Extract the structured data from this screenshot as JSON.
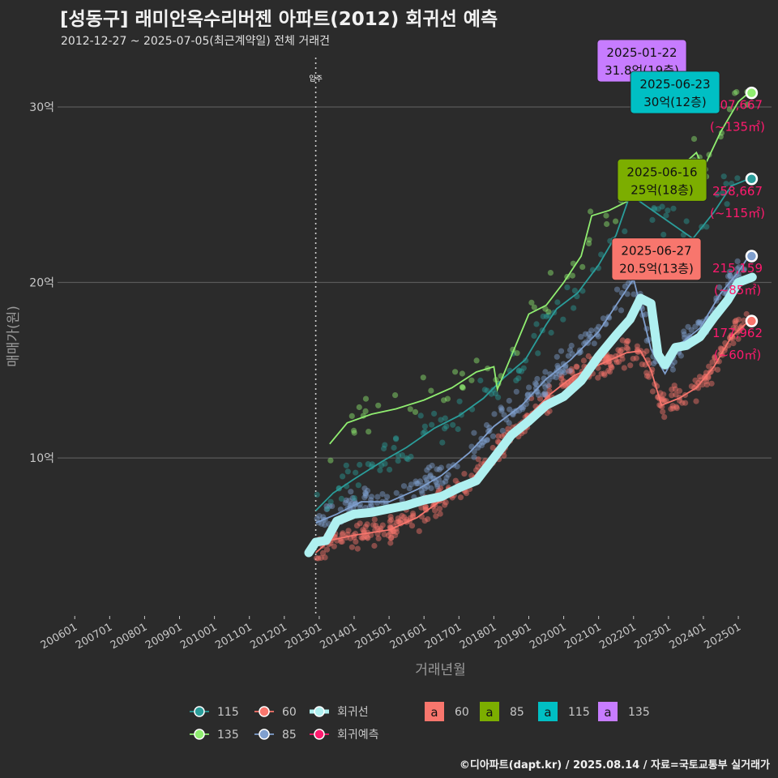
{
  "header": {
    "title": "[성동구] 래미안옥수리버젠 아파트(2012) 회귀선 예측",
    "subtitle": "2012-12-27 ~ 2025-07-05(최근계약일) 전체 거래건"
  },
  "caption": "©디아파트(dapt.kr) / 2025.08.14 / 자료=국토교통부 실거래가",
  "chart_data": {
    "type": "scatter",
    "xlabel": "거래년월",
    "ylabel": "매매가(원)",
    "x_ticks": [
      "200601",
      "200701",
      "200801",
      "200901",
      "201001",
      "201101",
      "201201",
      "201301",
      "201401",
      "201501",
      "201601",
      "201701",
      "201801",
      "201901",
      "202001",
      "202101",
      "202201",
      "202301",
      "202401",
      "202501"
    ],
    "y_ticks": [
      {
        "value": 10,
        "label": "10억"
      },
      {
        "value": 20,
        "label": "20억"
      },
      {
        "value": 30,
        "label": "30억"
      }
    ],
    "ylim": [
      1,
      33
    ],
    "xlim": [
      2005.6,
      2025.95
    ],
    "vline": {
      "x": 2012.9,
      "label": "입주"
    },
    "colors": {
      "60": "#f8766d",
      "85": "#7f9fce",
      "115": "#2a9d9a",
      "135": "#90ee70",
      "regression": "#aff0f0",
      "forecast": "#ff1a6e",
      "grid": "#5a5a5a",
      "axis_text": "#c8c8c8"
    },
    "series": [
      {
        "name": "60",
        "line": [
          [
            2012.9,
            4.6
          ],
          [
            2013.3,
            5.3
          ],
          [
            2014.0,
            5.6
          ],
          [
            2015.0,
            5.9
          ],
          [
            2015.8,
            6.6
          ],
          [
            2016.5,
            7.6
          ],
          [
            2017.3,
            8.6
          ],
          [
            2018.0,
            10.3
          ],
          [
            2018.8,
            12.0
          ],
          [
            2019.6,
            13.6
          ],
          [
            2020.3,
            14.7
          ],
          [
            2021.0,
            15.3
          ],
          [
            2021.8,
            16.0
          ],
          [
            2022.2,
            16.1
          ],
          [
            2022.5,
            15.0
          ],
          [
            2022.8,
            13.0
          ],
          [
            2023.3,
            13.4
          ],
          [
            2023.8,
            14.0
          ],
          [
            2024.3,
            15.2
          ],
          [
            2024.8,
            16.9
          ],
          [
            2025.3,
            17.8
          ]
        ]
      },
      {
        "name": "85",
        "line": [
          [
            2012.9,
            6.3
          ],
          [
            2013.5,
            6.8
          ],
          [
            2014.2,
            7.5
          ],
          [
            2015.0,
            7.5
          ],
          [
            2015.8,
            8.2
          ],
          [
            2016.5,
            9.0
          ],
          [
            2017.3,
            10.3
          ],
          [
            2018.0,
            11.8
          ],
          [
            2018.8,
            13.0
          ],
          [
            2019.5,
            14.5
          ],
          [
            2020.2,
            15.6
          ],
          [
            2021.0,
            17.2
          ],
          [
            2021.6,
            19.0
          ],
          [
            2022.0,
            20.2
          ],
          [
            2022.5,
            16.2
          ],
          [
            2022.9,
            14.8
          ],
          [
            2023.4,
            16.6
          ],
          [
            2023.9,
            17.4
          ],
          [
            2024.5,
            19.4
          ],
          [
            2025.0,
            20.6
          ],
          [
            2025.3,
            21.5
          ]
        ]
      },
      {
        "name": "115",
        "line": [
          [
            2012.9,
            7.0
          ],
          [
            2013.4,
            8.0
          ],
          [
            2014.0,
            8.8
          ],
          [
            2014.8,
            9.8
          ],
          [
            2015.5,
            10.6
          ],
          [
            2016.3,
            11.7
          ],
          [
            2017.0,
            12.4
          ],
          [
            2017.7,
            13.4
          ],
          [
            2018.3,
            14.6
          ],
          [
            2018.9,
            15.6
          ],
          [
            2019.5,
            17.6
          ],
          [
            2019.8,
            18.5
          ],
          [
            2020.4,
            19.4
          ],
          [
            2021.0,
            21.0
          ],
          [
            2021.5,
            22.7
          ],
          [
            2021.9,
            25.0
          ],
          [
            2023.7,
            22.5
          ],
          [
            2024.3,
            24.0
          ],
          [
            2024.8,
            25.5
          ],
          [
            2025.3,
            25.9
          ]
        ]
      },
      {
        "name": "135",
        "line": [
          [
            2013.3,
            10.8
          ],
          [
            2013.8,
            12.0
          ],
          [
            2014.5,
            12.5
          ],
          [
            2015.2,
            12.8
          ],
          [
            2016.0,
            13.3
          ],
          [
            2016.8,
            14.0
          ],
          [
            2017.5,
            14.9
          ],
          [
            2018.0,
            15.2
          ],
          [
            2018.1,
            13.9
          ],
          [
            2019.0,
            18.2
          ],
          [
            2019.5,
            18.7
          ],
          [
            2020.0,
            20.0
          ],
          [
            2020.5,
            21.5
          ],
          [
            2020.8,
            23.8
          ],
          [
            2021.3,
            24.1
          ],
          [
            2021.8,
            24.6
          ],
          [
            2023.3,
            26.5
          ],
          [
            2023.8,
            27.4
          ],
          [
            2024.0,
            26.5
          ],
          [
            2024.5,
            28.6
          ],
          [
            2025.0,
            30.3
          ],
          [
            2025.3,
            30.8
          ]
        ]
      }
    ],
    "regression": [
      [
        2012.7,
        4.6
      ],
      [
        2012.9,
        5.2
      ],
      [
        2013.2,
        5.3
      ],
      [
        2013.5,
        6.4
      ],
      [
        2014.0,
        6.8
      ],
      [
        2014.5,
        6.9
      ],
      [
        2015.0,
        7.1
      ],
      [
        2015.5,
        7.3
      ],
      [
        2016.0,
        7.6
      ],
      [
        2016.5,
        7.8
      ],
      [
        2017.0,
        8.3
      ],
      [
        2017.5,
        8.7
      ],
      [
        2018.0,
        10.0
      ],
      [
        2018.5,
        11.3
      ],
      [
        2019.0,
        12.1
      ],
      [
        2019.5,
        13.0
      ],
      [
        2020.0,
        13.5
      ],
      [
        2020.5,
        14.4
      ],
      [
        2021.0,
        15.8
      ],
      [
        2021.5,
        17.0
      ],
      [
        2021.9,
        17.9
      ],
      [
        2022.2,
        19.1
      ],
      [
        2022.5,
        18.8
      ],
      [
        2022.7,
        15.9
      ],
      [
        2022.9,
        15.3
      ],
      [
        2023.2,
        16.3
      ],
      [
        2023.5,
        16.4
      ],
      [
        2023.9,
        16.9
      ],
      [
        2024.3,
        18.0
      ],
      [
        2024.7,
        19.0
      ],
      [
        2025.0,
        20.0
      ],
      [
        2025.4,
        20.3
      ]
    ],
    "forecast_markers": [
      {
        "name": "135",
        "x": 2025.38,
        "y": 30.8,
        "value": "307,667",
        "area": "(~135㎡)"
      },
      {
        "name": "115",
        "x": 2025.38,
        "y": 25.9,
        "value": "258,667",
        "area": "(~115㎡)"
      },
      {
        "name": "85",
        "x": 2025.38,
        "y": 21.5,
        "value": "215,159",
        "area": "(~85㎡)"
      },
      {
        "name": "60",
        "x": 2025.38,
        "y": 17.8,
        "value": "177,962",
        "area": "(~60㎡)"
      }
    ],
    "labels": [
      {
        "name": "135",
        "date": "2025-01-22",
        "text": "31.8억(19층)",
        "y": 31.8
      },
      {
        "name": "115",
        "date": "2025-06-23",
        "text": "30억(12층)",
        "y": 30
      },
      {
        "name": "85",
        "date": "2025-06-16",
        "text": "25억(18층)",
        "y": 25
      },
      {
        "name": "60",
        "date": "2025-06-27",
        "text": "20.5억(13층)",
        "y": 20.5
      }
    ],
    "label_colors": {
      "60": "#f8766d",
      "85": "#7cae00",
      "115": "#00bfc4",
      "135": "#c77cff"
    },
    "legend": {
      "placement": "bottom",
      "point_items": [
        {
          "key": "115",
          "label": "115"
        },
        {
          "key": "60",
          "label": "60"
        },
        {
          "key": "regression",
          "label": "회귀선"
        },
        {
          "key": "135",
          "label": "135"
        },
        {
          "key": "85",
          "label": "85"
        },
        {
          "key": "forecast",
          "label": "회귀예측"
        }
      ],
      "label_glyph": "a",
      "label_items": [
        {
          "key": "60",
          "label": "60"
        },
        {
          "key": "85",
          "label": "85"
        },
        {
          "key": "115",
          "label": "115"
        },
        {
          "key": "135",
          "label": "135"
        }
      ]
    }
  }
}
